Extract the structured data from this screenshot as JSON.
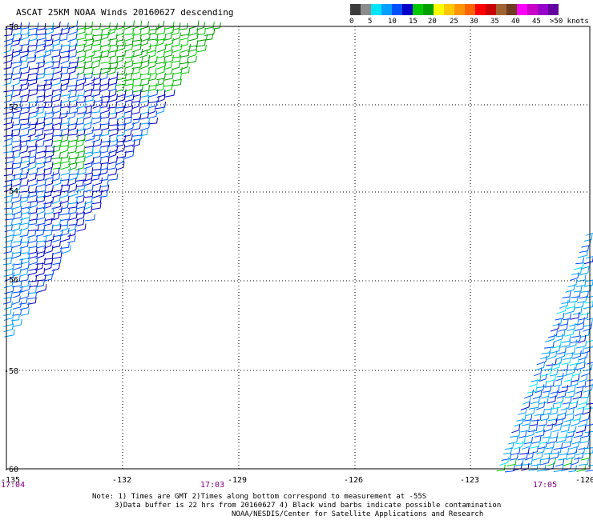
{
  "title": "ASCAT 25KM NOAA Winds 20160627 descending",
  "colorbar": {
    "labels": [
      "0",
      "5",
      "10",
      "15",
      "20",
      "25",
      "30",
      "35",
      "40",
      "45",
      ">50 knots"
    ],
    "colors": [
      "#3c3c3c",
      "#8c8c8c",
      "#00e6ff",
      "#00a0ff",
      "#0050ff",
      "#0000c8",
      "#00c800",
      "#00a000",
      "#ffff00",
      "#ffc800",
      "#ff9600",
      "#ff6400",
      "#ff0000",
      "#c80000",
      "#a06432",
      "#6e3c1e",
      "#ff00ff",
      "#c800c8",
      "#9600c8",
      "#6400a0"
    ]
  },
  "map": {
    "lon_ticks": [
      "-135",
      "-132",
      "-129",
      "-126",
      "-123",
      "-120"
    ],
    "lat_ticks": [
      "-50",
      "-52",
      "-54",
      "-56",
      "-58",
      "-60"
    ],
    "time_labels": [
      "17:04",
      "17:03",
      "17:05"
    ]
  },
  "notes": {
    "line1": "Note: 1) Times are GMT 2)Times along bottom correspond to measurement at -55S",
    "line2": "3)Data buffer is 22 hrs from 20160627 4) Black wind barbs indicate possible contamination",
    "line3": "NOAA/NESDIS/Center for Satellite Applications and Research"
  },
  "swaths": [
    {
      "name": "west",
      "colors": [
        "#0000c8",
        "#0050ff",
        "#00a0ff",
        "#00c800",
        "#00a000"
      ]
    },
    {
      "name": "east",
      "colors": [
        "#0000c8",
        "#0050ff",
        "#00a0ff",
        "#00e6ff",
        "#00c800"
      ]
    }
  ]
}
